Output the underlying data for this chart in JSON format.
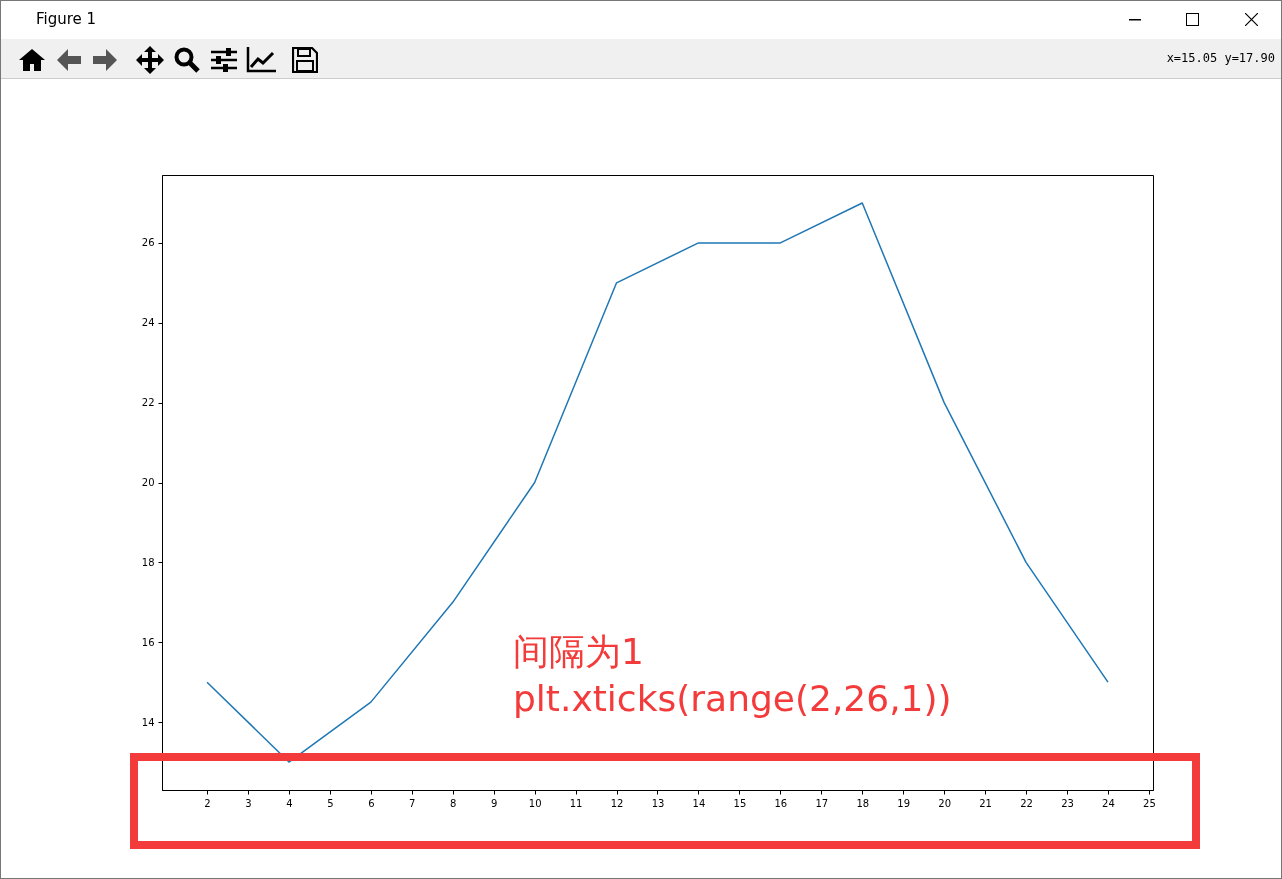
{
  "chart_data": {
    "type": "line",
    "x": [
      2,
      4,
      6,
      8,
      10,
      12,
      14,
      16,
      18,
      20,
      22,
      24
    ],
    "series": [
      {
        "color": "#1f77b4",
        "values": [
          15,
          13,
          14.5,
          17,
          20,
          25,
          26,
          26,
          27,
          22,
          18,
          15
        ]
      }
    ],
    "xlim": [
      0.9,
      25.1
    ],
    "ylim": [
      12.3,
      27.7
    ],
    "xticks": [
      2,
      3,
      4,
      5,
      6,
      7,
      8,
      9,
      10,
      11,
      12,
      13,
      14,
      15,
      16,
      17,
      18,
      19,
      20,
      21,
      22,
      23,
      24,
      25
    ],
    "yticks": [
      14,
      16,
      18,
      20,
      22,
      24,
      26
    ],
    "grid": false,
    "annotations": [
      "Figure 1",
      "x=15.05 y=17.90",
      "间隔为1",
      "plt.xticks(range(2,26,1))"
    ]
  }
}
